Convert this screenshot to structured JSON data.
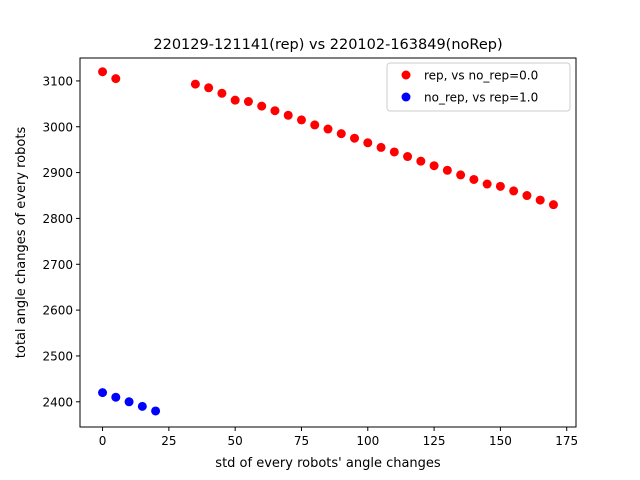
{
  "chart_data": {
    "type": "scatter",
    "title": "220129-121141(rep) vs 220102-163849(noRep)",
    "xlabel": "std of every robots' angle changes",
    "ylabel": "total angle changes of every robots",
    "xlim": [
      -8.5,
      178.5
    ],
    "ylim": [
      2345,
      3150
    ],
    "xticks": [
      0,
      25,
      50,
      75,
      100,
      125,
      150,
      175
    ],
    "yticks": [
      2400,
      2500,
      2600,
      2700,
      2800,
      2900,
      3000,
      3100
    ],
    "grid": false,
    "legend_position": "top-right",
    "series": [
      {
        "name": "rep, vs no_rep=0.0",
        "color": "#ff0000",
        "x": [
          0,
          5,
          35,
          40,
          45,
          50,
          55,
          60,
          65,
          70,
          75,
          80,
          85,
          90,
          95,
          100,
          105,
          110,
          115,
          120,
          125,
          130,
          135,
          140,
          145,
          150,
          155,
          160,
          165,
          170
        ],
        "y": [
          3120,
          3105,
          3093,
          3085,
          3073,
          3058,
          3055,
          3045,
          3035,
          3025,
          3015,
          3004,
          2995,
          2985,
          2975,
          2965,
          2955,
          2945,
          2935,
          2925,
          2915,
          2905,
          2895,
          2885,
          2875,
          2870,
          2860,
          2850,
          2840,
          2830
        ]
      },
      {
        "name": "no_rep, vs rep=1.0",
        "color": "#0000ff",
        "x": [
          0,
          5,
          10,
          15,
          20
        ],
        "y": [
          2420,
          2410,
          2400,
          2390,
          2380
        ]
      }
    ]
  }
}
